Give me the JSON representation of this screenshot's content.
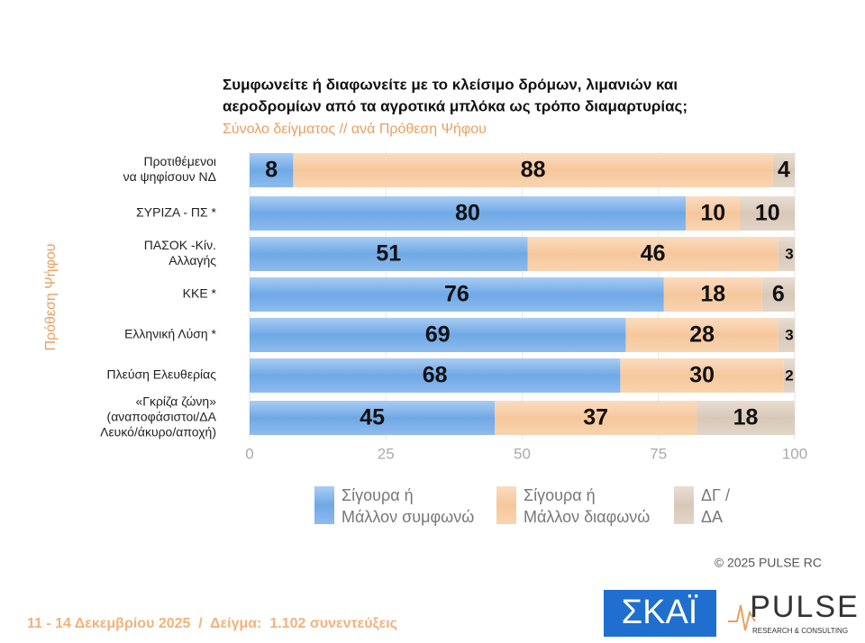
{
  "chart_data": {
    "type": "stacked-bar-horizontal",
    "title": [
      "Συμφωνείτε ή διαφωνείτε με το κλείσιμο δρόμων, λιμανιών και",
      "αεροδρομίων από τα αγροτικά μπλόκα ως τρόπο διαμαρτυρίας;"
    ],
    "subtitle": "Σύνολο δείγματος // ανά Πρόθεση Ψήφου",
    "y_label": "Πρόθεση Ψήφου",
    "categories": [
      [
        "Προτιθέμενοι",
        "να ψηφίσουν ΝΔ"
      ],
      [
        "ΣΥΡΙΖΑ - ΠΣ *"
      ],
      [
        "ΠΑΣΟΚ -Κίν.",
        "Αλλαγής"
      ],
      [
        "ΚΚΕ *"
      ],
      [
        "Ελληνική Λύση *"
      ],
      [
        "Πλεύση Ελευθερίας"
      ],
      [
        "«Γκρίζα ζώνη»",
        "(αναποφάσιστοι/ΔΑ",
        "Λευκό/άκυρο/αποχή)"
      ]
    ],
    "series": [
      {
        "name": [
          "Σίγουρα ή",
          "Μάλλον συμφωνώ"
        ],
        "color": "#6fa8e6",
        "values": [
          8,
          80,
          51,
          76,
          69,
          68,
          45
        ]
      },
      {
        "name": [
          "Σίγουρα ή",
          "Μάλλον διαφωνώ"
        ],
        "color": "#f6c79c",
        "values": [
          88,
          10,
          46,
          18,
          28,
          30,
          37
        ]
      },
      {
        "name": [
          "ΔΓ /",
          "ΔΑ"
        ],
        "color": "#d8c8b8",
        "values": [
          4,
          10,
          3,
          6,
          3,
          2,
          18
        ]
      }
    ],
    "xlim": [
      0,
      100
    ],
    "xticks": [
      0,
      25,
      50,
      75,
      100
    ],
    "copyright": "© 2025 PULSE RC",
    "footer": "11 - 14 Δεκεμβρίου 2025  /  Δείγμα:  1.102 συνεντεύξεις",
    "logos": {
      "skai": "ΣΚΑΪ",
      "pulse": "PULSE",
      "pulse_sub": "RESEARCH & CONSULTING"
    }
  }
}
